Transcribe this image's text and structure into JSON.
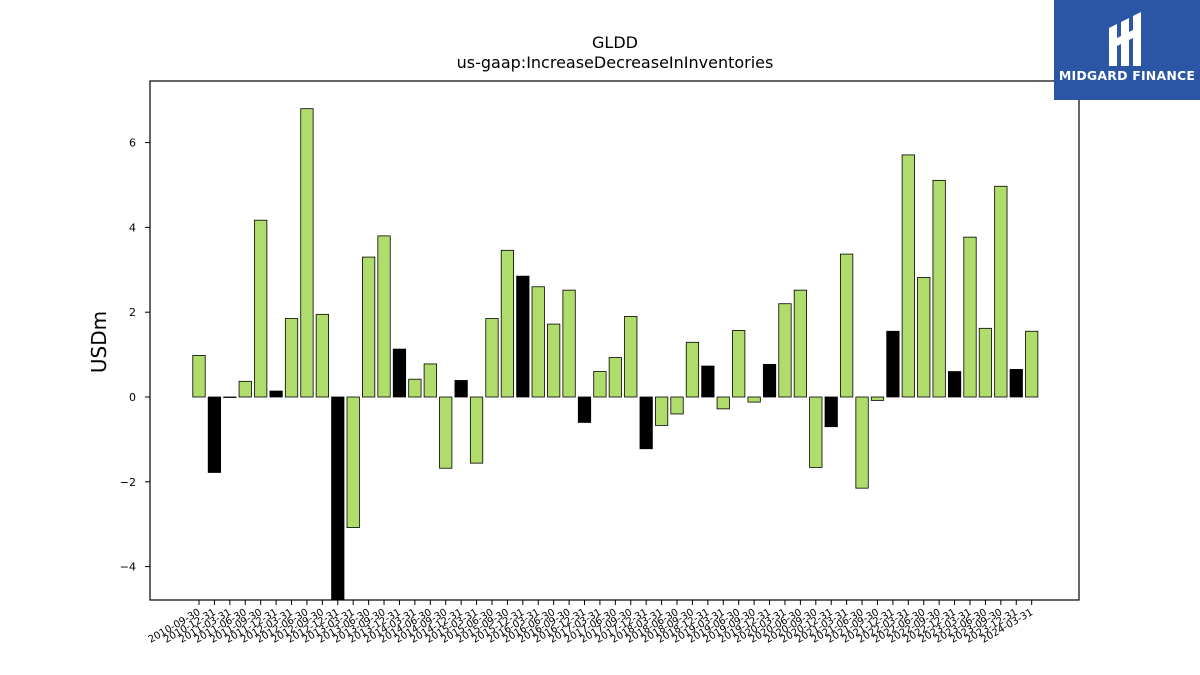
{
  "chart_data": {
    "type": "bar",
    "title": "GLDD",
    "subtitle": "us-gaap:IncreaseDecreaseInInventories",
    "xlabel": "",
    "ylabel": "USDm",
    "ylim": [
      -4.8,
      7.4
    ],
    "yticks": [
      -4,
      -2,
      0,
      2,
      4,
      6
    ],
    "grid": false,
    "categories": [
      "2010-09-30",
      "2010-12-31",
      "2011-03-31",
      "2011-06-30",
      "2011-09-30",
      "2011-12-31",
      "2012-03-31",
      "2012-06-30",
      "2012-09-30",
      "2012-12-31",
      "2013-03-31",
      "2013-06-30",
      "2013-09-30",
      "2013-12-31",
      "2014-03-31",
      "2014-06-30",
      "2014-09-30",
      "2014-12-31",
      "2015-03-31",
      "2015-06-30",
      "2015-09-30",
      "2015-12-31",
      "2016-03-31",
      "2016-06-30",
      "2016-09-30",
      "2016-12-31",
      "2017-03-31",
      "2017-06-30",
      "2017-09-30",
      "2017-12-31",
      "2018-03-31",
      "2018-06-30",
      "2018-09-30",
      "2018-12-31",
      "2019-03-31",
      "2019-06-30",
      "2019-09-30",
      "2019-12-31",
      "2020-03-31",
      "2020-06-30",
      "2020-09-30",
      "2020-12-31",
      "2021-03-31",
      "2021-06-30",
      "2021-09-30",
      "2021-12-31",
      "2022-03-31",
      "2022-06-30",
      "2022-09-30",
      "2022-12-31",
      "2023-03-31",
      "2023-06-30",
      "2023-09-30",
      "2023-12-31",
      "2024-03-31"
    ],
    "values": [
      0.98,
      -1.78,
      0.0,
      0.37,
      4.17,
      0.14,
      1.85,
      6.8,
      1.95,
      -4.85,
      -3.08,
      3.3,
      3.8,
      1.13,
      0.42,
      0.78,
      -1.68,
      0.39,
      -1.56,
      1.85,
      3.46,
      2.85,
      2.6,
      1.72,
      2.52,
      -0.6,
      0.6,
      0.93,
      1.9,
      -1.22,
      -0.67,
      -0.4,
      1.29,
      0.73,
      -0.28,
      1.57,
      -0.12,
      0.77,
      2.2,
      2.52,
      -1.66,
      -0.7,
      3.37,
      -2.15,
      -0.08,
      1.55,
      5.71,
      2.82,
      5.11,
      0.6,
      3.77,
      1.62,
      4.97,
      0.65,
      1.55
    ],
    "bar_colors": [
      "green",
      "black",
      "green",
      "green",
      "green",
      "black",
      "green",
      "green",
      "green",
      "black",
      "green",
      "green",
      "green",
      "black",
      "green",
      "green",
      "green",
      "black",
      "green",
      "green",
      "green",
      "black",
      "green",
      "green",
      "green",
      "black",
      "green",
      "green",
      "green",
      "black",
      "green",
      "green",
      "green",
      "black",
      "green",
      "green",
      "green",
      "black",
      "green",
      "green",
      "green",
      "black",
      "green",
      "green",
      "green",
      "black",
      "green",
      "green",
      "green",
      "black",
      "green",
      "green",
      "green",
      "black",
      "green"
    ],
    "colors": {
      "green": "#b0dc6c",
      "black": "#000000",
      "edge": "#000000"
    }
  },
  "logo": {
    "text": "MIDGARD FINANCE",
    "background": "#2a56a5"
  }
}
